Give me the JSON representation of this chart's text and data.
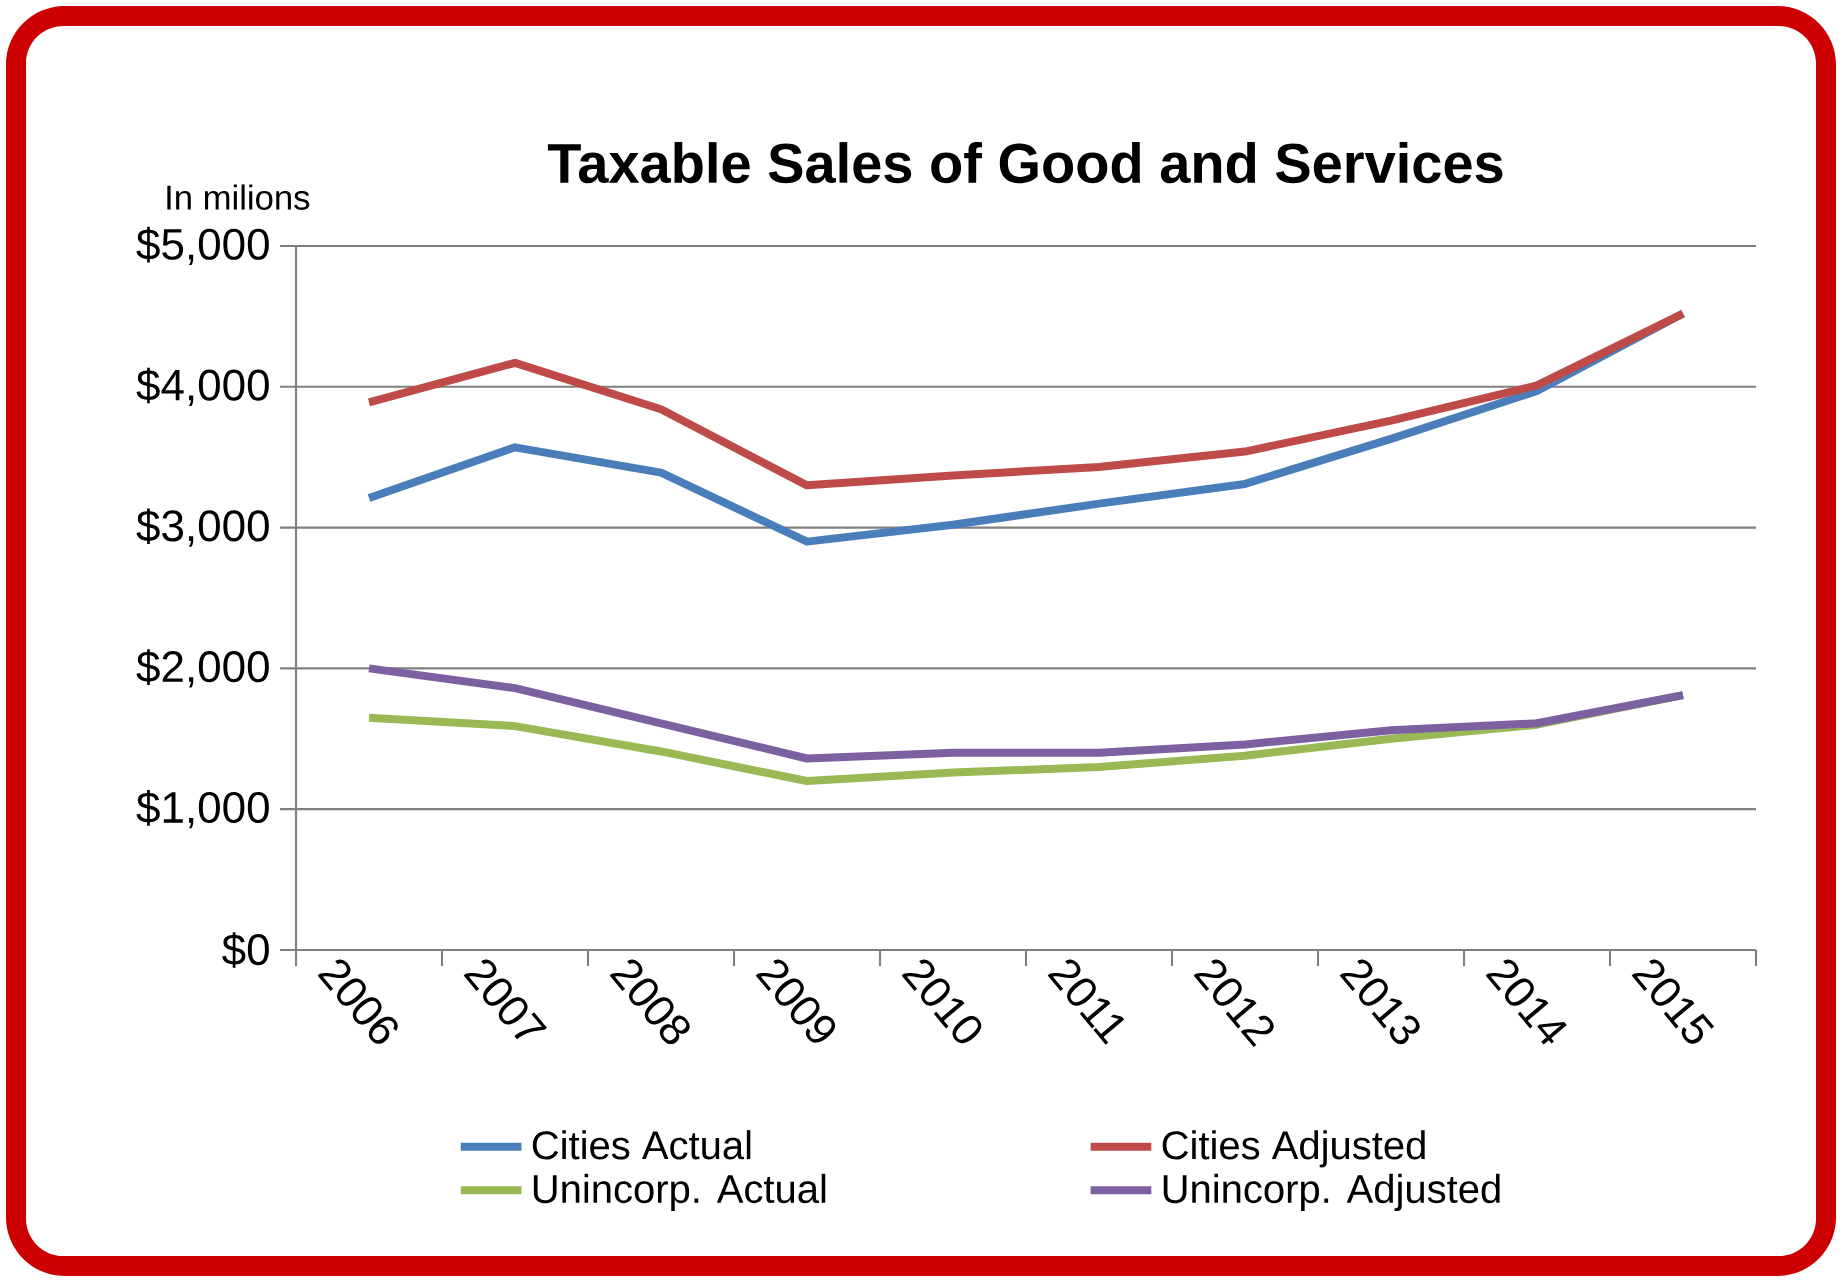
{
  "chart_data": {
    "type": "line",
    "title": "Taxable Sales of Good and Services",
    "ylabel": "In milions",
    "categories": [
      "2006",
      "2007",
      "2008",
      "2009",
      "2010",
      "2011",
      "2012",
      "2013",
      "2014",
      "2015"
    ],
    "series": [
      {
        "name": "Cities Actual",
        "color": "#4a7ebb",
        "values": [
          3210,
          3570,
          3390,
          2900,
          3020,
          3170,
          3310,
          3630,
          3970,
          4520
        ]
      },
      {
        "name": "Cities Adjusted",
        "color": "#be4b48",
        "values": [
          3890,
          4170,
          3840,
          3300,
          3370,
          3430,
          3540,
          3760,
          4010,
          4520
        ]
      },
      {
        "name": "Unincorp. Actual",
        "color": "#98b954",
        "values": [
          1650,
          1590,
          1410,
          1200,
          1260,
          1300,
          1380,
          1500,
          1600,
          1810
        ]
      },
      {
        "name": "Unincorp. Adjusted",
        "color": "#7d60a0",
        "values": [
          2000,
          1860,
          1610,
          1360,
          1400,
          1400,
          1460,
          1560,
          1610,
          1810
        ]
      }
    ],
    "ylim": [
      0,
      5000
    ],
    "yticks": [
      {
        "value": 0,
        "label": "$0"
      },
      {
        "value": 1000,
        "label": "$1,000"
      },
      {
        "value": 2000,
        "label": "$2,000"
      },
      {
        "value": 3000,
        "label": "$3,000"
      },
      {
        "value": 4000,
        "label": "$4,000"
      },
      {
        "value": 5000,
        "label": "$5,000"
      }
    ],
    "grid": "y",
    "legend": "bottom",
    "marker": "none",
    "line_style": "solid"
  }
}
